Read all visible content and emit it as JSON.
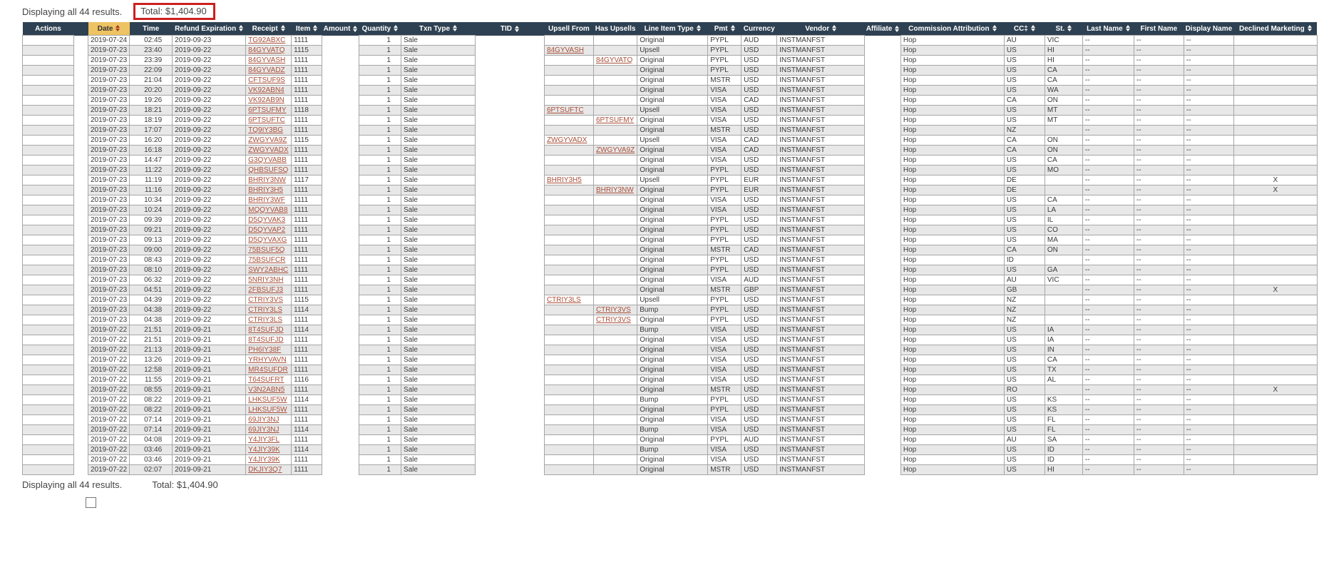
{
  "summary": {
    "results_text": "Displaying all 44 results.",
    "total_text": "Total: $1,404.90"
  },
  "footer": {
    "results_text": "Displaying all 44 results.",
    "total_text": "Total: $1,404.90"
  },
  "colors": {
    "header_bg": "#2e4152",
    "sorted_header_bg": "#edc363",
    "row_alt": "#e8e8e8",
    "link": "#a9503a",
    "total_box_border": "#cc2020"
  },
  "table": {
    "row_fields": [
      "date",
      "time",
      "refund_expiration",
      "receipt",
      "item",
      "upsell_from",
      "has_upsells",
      "line_item_type",
      "pmt",
      "currency",
      "cc",
      "st",
      "declined_marketing"
    ],
    "columns": [
      {
        "key": "actions",
        "label": "Actions"
      },
      {
        "key": "gap",
        "label": "",
        "blank": true
      },
      {
        "key": "date",
        "label": "Date",
        "sortable": true,
        "sorted": true,
        "src": 0
      },
      {
        "key": "time",
        "label": "Time",
        "src": 1
      },
      {
        "key": "refund_expiration",
        "label": "Refund Expiration",
        "sortable": true,
        "src": 2
      },
      {
        "key": "receipt",
        "label": "Receipt",
        "sortable": true,
        "src": 3,
        "link": true
      },
      {
        "key": "item",
        "label": "Item",
        "sortable": true,
        "src": 4
      },
      {
        "key": "amount",
        "label": "Amount",
        "sortable": true,
        "blank": true
      },
      {
        "key": "quantity",
        "label": "Quantity",
        "sortable": true,
        "default": true
      },
      {
        "key": "txn_type",
        "label": "Txn Type",
        "sortable": true,
        "default": true
      },
      {
        "key": "tid",
        "label": "TID",
        "sortable": true,
        "blank": true
      },
      {
        "key": "upsell_from",
        "label": "Upsell From",
        "src": 5,
        "link": true
      },
      {
        "key": "has_upsells",
        "label": "Has Upsells",
        "src": 6,
        "link": true
      },
      {
        "key": "line_item_type",
        "label": "Line Item Type",
        "sortable": true,
        "src": 7
      },
      {
        "key": "pmt",
        "label": "Pmt",
        "sortable": true,
        "src": 8
      },
      {
        "key": "currency",
        "label": "Currency",
        "src": 9
      },
      {
        "key": "vendor",
        "label": "Vendor",
        "sortable": true,
        "default": true
      },
      {
        "key": "affiliate",
        "label": "Affiliate",
        "sortable": true,
        "blank": true
      },
      {
        "key": "commission_attribution",
        "label": "Commission Attribution",
        "sortable": true,
        "default": true
      },
      {
        "key": "cc",
        "label": "CC‡",
        "sortable": true,
        "src": 10
      },
      {
        "key": "st",
        "label": "St.",
        "sortable": true,
        "src": 11
      },
      {
        "key": "last_name",
        "label": "Last Name",
        "sortable": true,
        "default": true
      },
      {
        "key": "first_name",
        "label": "First Name",
        "default": true
      },
      {
        "key": "display_name",
        "label": "Display Name",
        "default": true
      },
      {
        "key": "declined_marketing",
        "label": "Declined Marketing",
        "sortable": true,
        "src": 12
      }
    ],
    "defaults": {
      "quantity": "1",
      "txn_type": "Sale",
      "vendor": "INSTMANFST",
      "commission_attribution": "Hop",
      "last_name": "--",
      "first_name": "--",
      "display_name": "--"
    },
    "rows": [
      [
        "2019-07-24",
        "02:45",
        "2019-09-23",
        "TG92ABXC",
        "1111",
        "",
        "",
        "Original",
        "PYPL",
        "AUD",
        "AU",
        "VIC",
        ""
      ],
      [
        "2019-07-23",
        "23:40",
        "2019-09-22",
        "84GYVATQ",
        "1115",
        "84GYVASH",
        "",
        "Upsell",
        "PYPL",
        "USD",
        "US",
        "HI",
        ""
      ],
      [
        "2019-07-23",
        "23:39",
        "2019-09-22",
        "84GYVASH",
        "1111",
        "",
        "84GYVATQ",
        "Original",
        "PYPL",
        "USD",
        "US",
        "HI",
        ""
      ],
      [
        "2019-07-23",
        "22:09",
        "2019-09-22",
        "84GYVADZ",
        "1111",
        "",
        "",
        "Original",
        "PYPL",
        "USD",
        "US",
        "CA",
        ""
      ],
      [
        "2019-07-23",
        "21:04",
        "2019-09-22",
        "CFTSUF9S",
        "1111",
        "",
        "",
        "Original",
        "MSTR",
        "USD",
        "US",
        "CA",
        ""
      ],
      [
        "2019-07-23",
        "20:20",
        "2019-09-22",
        "VK92ABN4",
        "1111",
        "",
        "",
        "Original",
        "VISA",
        "USD",
        "US",
        "WA",
        ""
      ],
      [
        "2019-07-23",
        "19:26",
        "2019-09-22",
        "VK92AB9N",
        "1111",
        "",
        "",
        "Original",
        "VISA",
        "CAD",
        "CA",
        "ON",
        ""
      ],
      [
        "2019-07-23",
        "18:21",
        "2019-09-22",
        "6PTSUFMY",
        "1118",
        "6PTSUFTC",
        "",
        "Upsell",
        "VISA",
        "USD",
        "US",
        "MT",
        ""
      ],
      [
        "2019-07-23",
        "18:19",
        "2019-09-22",
        "6PTSUFTC",
        "1111",
        "",
        "6PTSUFMY",
        "Original",
        "VISA",
        "USD",
        "US",
        "MT",
        ""
      ],
      [
        "2019-07-23",
        "17:07",
        "2019-09-22",
        "TQ9IY3BG",
        "1111",
        "",
        "",
        "Original",
        "MSTR",
        "USD",
        "NZ",
        "",
        ""
      ],
      [
        "2019-07-23",
        "16:20",
        "2019-09-22",
        "ZWGYVA9Z",
        "1115",
        "ZWGYVADX",
        "",
        "Upsell",
        "VISA",
        "CAD",
        "CA",
        "ON",
        ""
      ],
      [
        "2019-07-23",
        "16:18",
        "2019-09-22",
        "ZWGYVADX",
        "1111",
        "",
        "ZWGYVA9Z",
        "Original",
        "VISA",
        "CAD",
        "CA",
        "ON",
        ""
      ],
      [
        "2019-07-23",
        "14:47",
        "2019-09-22",
        "G3QYVABB",
        "1111",
        "",
        "",
        "Original",
        "VISA",
        "USD",
        "US",
        "CA",
        ""
      ],
      [
        "2019-07-23",
        "11:22",
        "2019-09-22",
        "QHBSUFSQ",
        "1111",
        "",
        "",
        "Original",
        "PYPL",
        "USD",
        "US",
        "MO",
        ""
      ],
      [
        "2019-07-23",
        "11:19",
        "2019-09-22",
        "BHRIY3NW",
        "1117",
        "BHRIY3H5",
        "",
        "Upsell",
        "PYPL",
        "EUR",
        "DE",
        "",
        "X"
      ],
      [
        "2019-07-23",
        "11:16",
        "2019-09-22",
        "BHRIY3H5",
        "1111",
        "",
        "BHRIY3NW",
        "Original",
        "PYPL",
        "EUR",
        "DE",
        "",
        "X"
      ],
      [
        "2019-07-23",
        "10:34",
        "2019-09-22",
        "BHRIY3WF",
        "1111",
        "",
        "",
        "Original",
        "VISA",
        "USD",
        "US",
        "CA",
        ""
      ],
      [
        "2019-07-23",
        "10:24",
        "2019-09-22",
        "MQQYVAB8",
        "1111",
        "",
        "",
        "Original",
        "VISA",
        "USD",
        "US",
        "LA",
        ""
      ],
      [
        "2019-07-23",
        "09:39",
        "2019-09-22",
        "D5QYVAK3",
        "1111",
        "",
        "",
        "Original",
        "PYPL",
        "USD",
        "US",
        "IL",
        ""
      ],
      [
        "2019-07-23",
        "09:21",
        "2019-09-22",
        "D5QYVAP2",
        "1111",
        "",
        "",
        "Original",
        "PYPL",
        "USD",
        "US",
        "CO",
        ""
      ],
      [
        "2019-07-23",
        "09:13",
        "2019-09-22",
        "D5QYVAXG",
        "1111",
        "",
        "",
        "Original",
        "PYPL",
        "USD",
        "US",
        "MA",
        ""
      ],
      [
        "2019-07-23",
        "09:00",
        "2019-09-22",
        "75BSUF5Q",
        "1111",
        "",
        "",
        "Original",
        "MSTR",
        "CAD",
        "CA",
        "ON",
        ""
      ],
      [
        "2019-07-23",
        "08:43",
        "2019-09-22",
        "75BSUFCR",
        "1111",
        "",
        "",
        "Original",
        "PYPL",
        "USD",
        "ID",
        "",
        ""
      ],
      [
        "2019-07-23",
        "08:10",
        "2019-09-22",
        "SWY2ABHC",
        "1111",
        "",
        "",
        "Original",
        "PYPL",
        "USD",
        "US",
        "GA",
        ""
      ],
      [
        "2019-07-23",
        "06:32",
        "2019-09-22",
        "5NRIY3NH",
        "1111",
        "",
        "",
        "Original",
        "VISA",
        "AUD",
        "AU",
        "VIC",
        ""
      ],
      [
        "2019-07-23",
        "04:51",
        "2019-09-22",
        "2FBSUFJ3",
        "1111",
        "",
        "",
        "Original",
        "MSTR",
        "GBP",
        "GB",
        "",
        "X"
      ],
      [
        "2019-07-23",
        "04:39",
        "2019-09-22",
        "CTRIY3VS",
        "1115",
        "CTRIY3LS",
        "",
        "Upsell",
        "PYPL",
        "USD",
        "NZ",
        "",
        ""
      ],
      [
        "2019-07-23",
        "04:38",
        "2019-09-22",
        "CTRIY3LS",
        "1114",
        "",
        "CTRIY3VS",
        "Bump",
        "PYPL",
        "USD",
        "NZ",
        "",
        ""
      ],
      [
        "2019-07-23",
        "04:38",
        "2019-09-22",
        "CTRIY3LS",
        "1111",
        "",
        "CTRIY3VS",
        "Original",
        "PYPL",
        "USD",
        "NZ",
        "",
        ""
      ],
      [
        "2019-07-22",
        "21:51",
        "2019-09-21",
        "8T4SUFJD",
        "1114",
        "",
        "",
        "Bump",
        "VISA",
        "USD",
        "US",
        "IA",
        ""
      ],
      [
        "2019-07-22",
        "21:51",
        "2019-09-21",
        "8T4SUFJD",
        "1111",
        "",
        "",
        "Original",
        "VISA",
        "USD",
        "US",
        "IA",
        ""
      ],
      [
        "2019-07-22",
        "21:13",
        "2019-09-21",
        "PH6IY38F",
        "1111",
        "",
        "",
        "Original",
        "VISA",
        "USD",
        "US",
        "IN",
        ""
      ],
      [
        "2019-07-22",
        "13:26",
        "2019-09-21",
        "YRHYVAVN",
        "1111",
        "",
        "",
        "Original",
        "VISA",
        "USD",
        "US",
        "CA",
        ""
      ],
      [
        "2019-07-22",
        "12:58",
        "2019-09-21",
        "MR4SUFDR",
        "1111",
        "",
        "",
        "Original",
        "VISA",
        "USD",
        "US",
        "TX",
        ""
      ],
      [
        "2019-07-22",
        "11:55",
        "2019-09-21",
        "T64SUFRT",
        "1116",
        "",
        "",
        "Original",
        "VISA",
        "USD",
        "US",
        "AL",
        ""
      ],
      [
        "2019-07-22",
        "08:55",
        "2019-09-21",
        "V3N2ABN5",
        "1111",
        "",
        "",
        "Original",
        "MSTR",
        "USD",
        "RO",
        "",
        "X"
      ],
      [
        "2019-07-22",
        "08:22",
        "2019-09-21",
        "LHKSUF5W",
        "1114",
        "",
        "",
        "Bump",
        "PYPL",
        "USD",
        "US",
        "KS",
        ""
      ],
      [
        "2019-07-22",
        "08:22",
        "2019-09-21",
        "LHKSUF5W",
        "1111",
        "",
        "",
        "Original",
        "PYPL",
        "USD",
        "US",
        "KS",
        ""
      ],
      [
        "2019-07-22",
        "07:14",
        "2019-09-21",
        "69JIY3NJ",
        "1111",
        "",
        "",
        "Original",
        "VISA",
        "USD",
        "US",
        "FL",
        ""
      ],
      [
        "2019-07-22",
        "07:14",
        "2019-09-21",
        "69JIY3NJ",
        "1114",
        "",
        "",
        "Bump",
        "VISA",
        "USD",
        "US",
        "FL",
        ""
      ],
      [
        "2019-07-22",
        "04:08",
        "2019-09-21",
        "Y4JIY3FL",
        "1111",
        "",
        "",
        "Original",
        "PYPL",
        "AUD",
        "AU",
        "SA",
        ""
      ],
      [
        "2019-07-22",
        "03:46",
        "2019-09-21",
        "Y4JIY39K",
        "1114",
        "",
        "",
        "Bump",
        "VISA",
        "USD",
        "US",
        "ID",
        ""
      ],
      [
        "2019-07-22",
        "03:46",
        "2019-09-21",
        "Y4JIY39K",
        "1111",
        "",
        "",
        "Original",
        "VISA",
        "USD",
        "US",
        "ID",
        ""
      ],
      [
        "2019-07-22",
        "02:07",
        "2019-09-21",
        "DKJIY3Q7",
        "1111",
        "",
        "",
        "Original",
        "MSTR",
        "USD",
        "US",
        "HI",
        ""
      ]
    ]
  }
}
